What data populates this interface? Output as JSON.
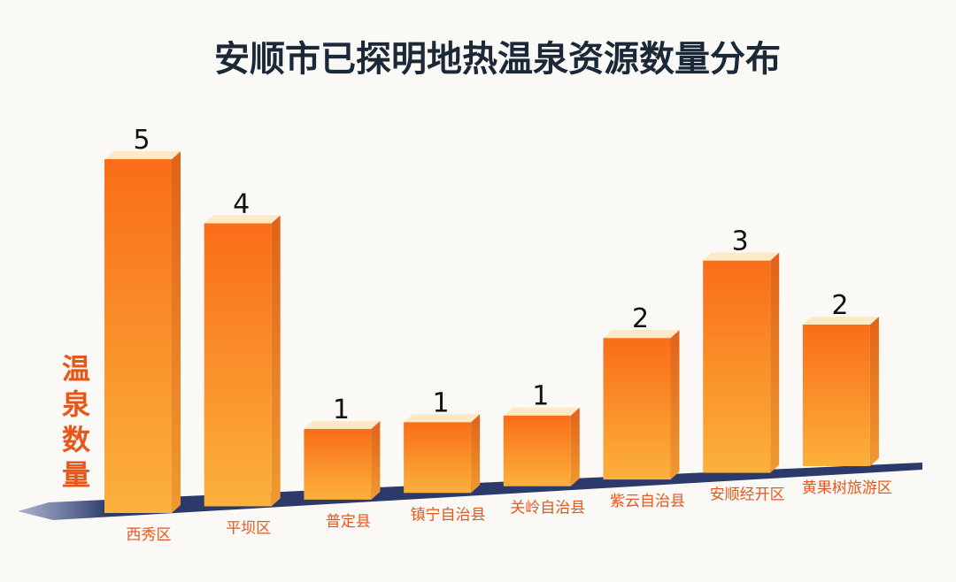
{
  "chart_data": {
    "type": "bar",
    "title": "安顺市已探明地热温泉资源数量分布",
    "xlabel": "",
    "ylabel": "温泉数量",
    "categories": [
      "西秀区",
      "平坝区",
      "普定县",
      "镇宁自治县",
      "关岭自治县",
      "紫云自治县",
      "安顺经开区",
      "黄果树旅游区"
    ],
    "values": [
      5,
      4,
      1,
      1,
      1,
      2,
      3,
      2
    ],
    "ylim": [
      0,
      5
    ],
    "grid": false,
    "legend": "none",
    "colors": {
      "bar_front_top": "#fa7a1c",
      "bar_front_bottom": "#f9b03a",
      "bar_side": "#d8681a",
      "bar_top": "#fde9c4",
      "base": "#2b3a6b",
      "label": "#e8561a",
      "title": "#1b2838"
    }
  }
}
